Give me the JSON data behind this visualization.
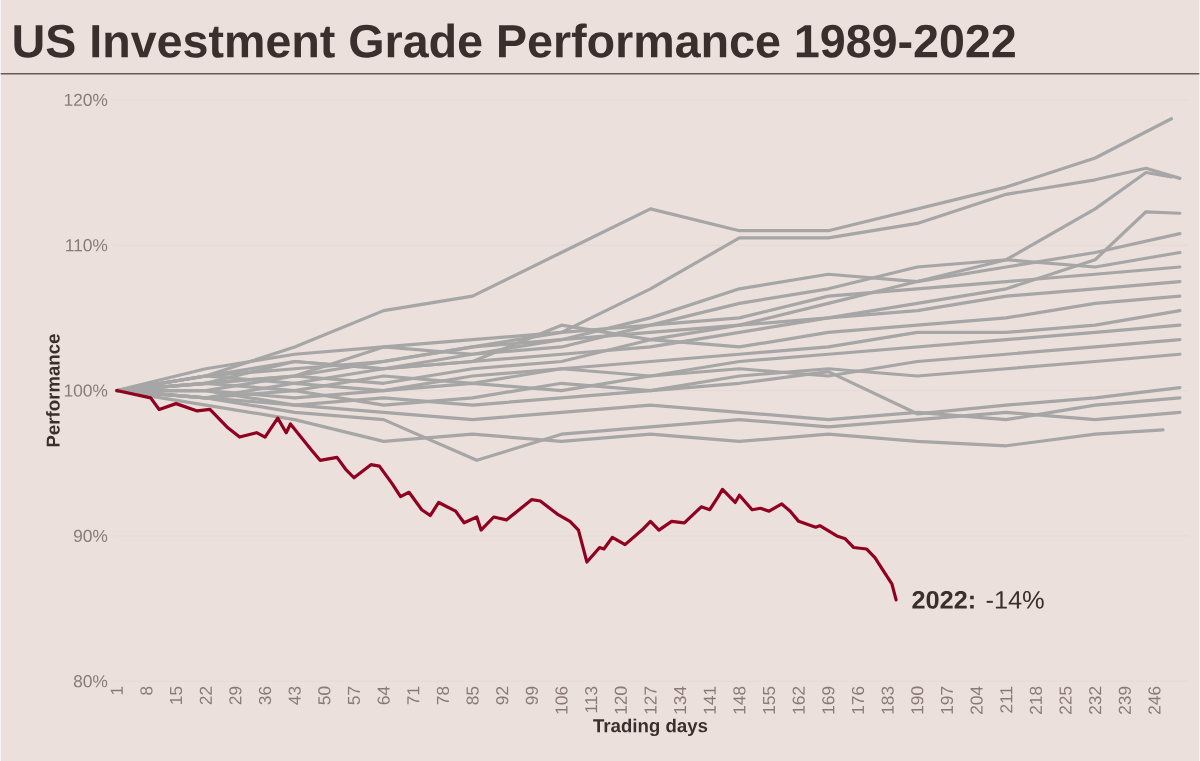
{
  "chart_data": {
    "type": "line",
    "title": "US Investment Grade Performance 1989-2022",
    "xlabel": "Trading days",
    "ylabel": "Performance",
    "xlim": [
      0,
      254
    ],
    "ylim": [
      80,
      120
    ],
    "xticks": [
      1,
      8,
      15,
      22,
      29,
      36,
      43,
      50,
      57,
      64,
      71,
      78,
      85,
      92,
      99,
      106,
      113,
      120,
      127,
      134,
      141,
      148,
      155,
      162,
      169,
      176,
      183,
      190,
      197,
      204,
      211,
      218,
      225,
      232,
      239,
      246
    ],
    "yticks": [
      {
        "value": 80,
        "label": "80%"
      },
      {
        "value": 90,
        "label": "90%"
      },
      {
        "value": 100,
        "label": "100%"
      },
      {
        "value": 110,
        "label": "110%"
      },
      {
        "value": 120,
        "label": "120%"
      }
    ],
    "grid": "y",
    "annotations": [
      {
        "text": "**2022:** -14%",
        "x": 185,
        "y": 85.6
      }
    ],
    "series": [
      {
        "color": "#a6a6a6",
        "x": [
          1,
          22,
          43,
          64,
          85,
          106,
          127,
          148,
          169,
          190,
          211,
          232,
          250
        ],
        "values": [
          100,
          101,
          103,
          105.5,
          106.5,
          109.5,
          112.5,
          111,
          111,
          112.5,
          114,
          116,
          118.7
        ]
      },
      {
        "color": "#a6a6a6",
        "x": [
          1,
          22,
          43,
          64,
          85,
          106,
          127,
          148,
          169,
          190,
          211,
          232,
          244,
          252
        ],
        "values": [
          100,
          100.5,
          101,
          103,
          103.5,
          104,
          107,
          110.5,
          110.5,
          111.5,
          113.5,
          114.5,
          115.3,
          114.6
        ]
      },
      {
        "color": "#a6a6a6",
        "x": [
          1,
          22,
          43,
          64,
          85,
          106,
          127,
          148,
          169,
          190,
          211,
          232,
          244,
          250
        ],
        "values": [
          100,
          101,
          102,
          101.5,
          102,
          104.5,
          103.5,
          104.5,
          106,
          107.5,
          109,
          112.5,
          115,
          114.7
        ]
      },
      {
        "color": "#a6a6a6",
        "x": [
          1,
          22,
          43,
          64,
          85,
          106,
          127,
          148,
          169,
          190,
          211,
          232,
          244,
          252
        ],
        "values": [
          100,
          100.5,
          101,
          102,
          103,
          103.5,
          104,
          104.5,
          105,
          106,
          107,
          109,
          112.3,
          112.2
        ]
      },
      {
        "color": "#a6a6a6",
        "x": [
          1,
          22,
          43,
          64,
          85,
          106,
          127,
          148,
          169,
          190,
          211,
          232,
          252
        ],
        "values": [
          100,
          101.5,
          102.5,
          103,
          102.5,
          103.5,
          105,
          107,
          108,
          107.5,
          108.5,
          109.5,
          110.8
        ]
      },
      {
        "color": "#a6a6a6",
        "x": [
          1,
          22,
          43,
          64,
          85,
          106,
          127,
          148,
          169,
          190,
          211,
          232,
          252
        ],
        "values": [
          100,
          101,
          101.5,
          102,
          103,
          104,
          104.5,
          106,
          107,
          108.5,
          109,
          108.5,
          109.5
        ]
      },
      {
        "color": "#a6a6a6",
        "x": [
          1,
          22,
          43,
          64,
          85,
          106,
          127,
          148,
          169,
          190,
          211,
          232,
          252
        ],
        "values": [
          100,
          100.5,
          102,
          101.5,
          102.5,
          103,
          104.5,
          105,
          106.5,
          107,
          107.5,
          108,
          108.5
        ]
      },
      {
        "color": "#a6a6a6",
        "x": [
          1,
          22,
          43,
          64,
          85,
          106,
          127,
          148,
          169,
          190,
          211,
          232,
          252
        ],
        "values": [
          100,
          101,
          100.5,
          101.5,
          102,
          102.5,
          103,
          104,
          105,
          105.5,
          106.5,
          107,
          107.5
        ]
      },
      {
        "color": "#a6a6a6",
        "x": [
          1,
          22,
          43,
          64,
          85,
          106,
          127,
          148,
          169,
          190,
          211,
          232,
          252
        ],
        "values": [
          100,
          100,
          101,
          100.5,
          101.5,
          102,
          103.5,
          103,
          104,
          104.5,
          105,
          106,
          106.5
        ]
      },
      {
        "color": "#a6a6a6",
        "x": [
          1,
          22,
          43,
          64,
          85,
          106,
          127,
          148,
          169,
          190,
          211,
          232,
          252
        ],
        "values": [
          100,
          100.5,
          100,
          101,
          100.5,
          101.5,
          102,
          102.5,
          103,
          104,
          104,
          104.5,
          105.5
        ]
      },
      {
        "color": "#a6a6a6",
        "x": [
          1,
          22,
          43,
          64,
          85,
          106,
          127,
          148,
          169,
          190,
          211,
          232,
          252
        ],
        "values": [
          100,
          99.5,
          100.5,
          100,
          101,
          101.5,
          101,
          102,
          102.5,
          103,
          103.5,
          104,
          104.5
        ]
      },
      {
        "color": "#a6a6a6",
        "x": [
          1,
          22,
          43,
          64,
          85,
          106,
          127,
          148,
          169,
          190,
          211,
          232,
          252
        ],
        "values": [
          100,
          100,
          99.5,
          100,
          100.5,
          100,
          101,
          101.5,
          101,
          102,
          102.5,
          103,
          103.5
        ]
      },
      {
        "color": "#a6a6a6",
        "x": [
          1,
          22,
          43,
          64,
          85,
          106,
          127,
          148,
          169,
          190,
          211,
          232,
          252
        ],
        "values": [
          100,
          99.5,
          100,
          99,
          99.5,
          100.5,
          100,
          101,
          101.5,
          101,
          101.5,
          102,
          102.5
        ]
      },
      {
        "color": "#a6a6a6",
        "x": [
          1,
          22,
          43,
          64,
          85,
          106,
          127,
          148,
          169,
          190,
          211,
          232,
          252
        ],
        "values": [
          100,
          100,
          99,
          99.5,
          99,
          99.5,
          100,
          100.5,
          101.3,
          98.4,
          99,
          99.5,
          100.2
        ]
      },
      {
        "color": "#a6a6a6",
        "x": [
          1,
          22,
          43,
          64,
          85,
          106,
          127,
          148,
          169,
          190,
          211,
          232,
          252
        ],
        "values": [
          100,
          99.5,
          99,
          98.5,
          98,
          98.5,
          99,
          98.5,
          98,
          98.5,
          98,
          99,
          99.5
        ]
      },
      {
        "color": "#a6a6a6",
        "x": [
          1,
          22,
          43,
          64,
          86,
          106,
          127,
          148,
          169,
          190,
          211,
          232,
          252
        ],
        "values": [
          100,
          99.5,
          98.5,
          98,
          95.2,
          97,
          97.5,
          98,
          97.5,
          98,
          98.5,
          98,
          98.5
        ]
      },
      {
        "color": "#a6a6a6",
        "x": [
          1,
          22,
          43,
          64,
          85,
          106,
          127,
          148,
          169,
          190,
          211,
          232,
          248
        ],
        "values": [
          100,
          99,
          98,
          96.5,
          97,
          96.5,
          97,
          96.5,
          97,
          96.5,
          96.2,
          97,
          97.3
        ]
      },
      {
        "color": "#900020",
        "x": [
          1,
          9,
          11,
          15,
          20,
          23,
          27,
          30,
          34,
          36,
          39,
          41,
          42,
          47,
          49,
          53,
          55,
          57,
          61,
          63,
          66,
          68,
          70,
          73,
          75,
          77,
          81,
          83,
          86,
          87,
          90,
          93,
          96,
          99,
          101,
          105,
          108,
          110,
          112,
          115,
          116,
          118,
          121,
          125,
          127,
          129,
          132,
          135,
          139,
          141,
          143,
          144,
          147,
          148,
          151,
          153,
          155,
          158,
          160,
          162,
          166,
          167,
          171,
          173,
          175,
          178,
          180,
          182,
          184,
          185
        ],
        "values": [
          100,
          99.5,
          98.7,
          99.1,
          98.6,
          98.7,
          97.5,
          96.8,
          97.1,
          96.8,
          98.1,
          97.1,
          97.7,
          95.9,
          95.2,
          95.4,
          94.6,
          94.0,
          94.9,
          94.8,
          93.6,
          92.7,
          93.0,
          91.8,
          91.4,
          92.3,
          91.7,
          90.9,
          91.3,
          90.4,
          91.3,
          91.1,
          91.8,
          92.5,
          92.4,
          91.5,
          91.0,
          90.4,
          88.2,
          89.2,
          89.1,
          89.9,
          89.4,
          90.4,
          91.0,
          90.4,
          91.0,
          90.9,
          92.0,
          91.8,
          92.7,
          93.2,
          92.3,
          92.8,
          91.8,
          91.9,
          91.7,
          92.2,
          91.7,
          91.0,
          90.6,
          90.7,
          90.0,
          89.8,
          89.2,
          89.1,
          88.5,
          87.6,
          86.7,
          85.6
        ]
      }
    ]
  }
}
